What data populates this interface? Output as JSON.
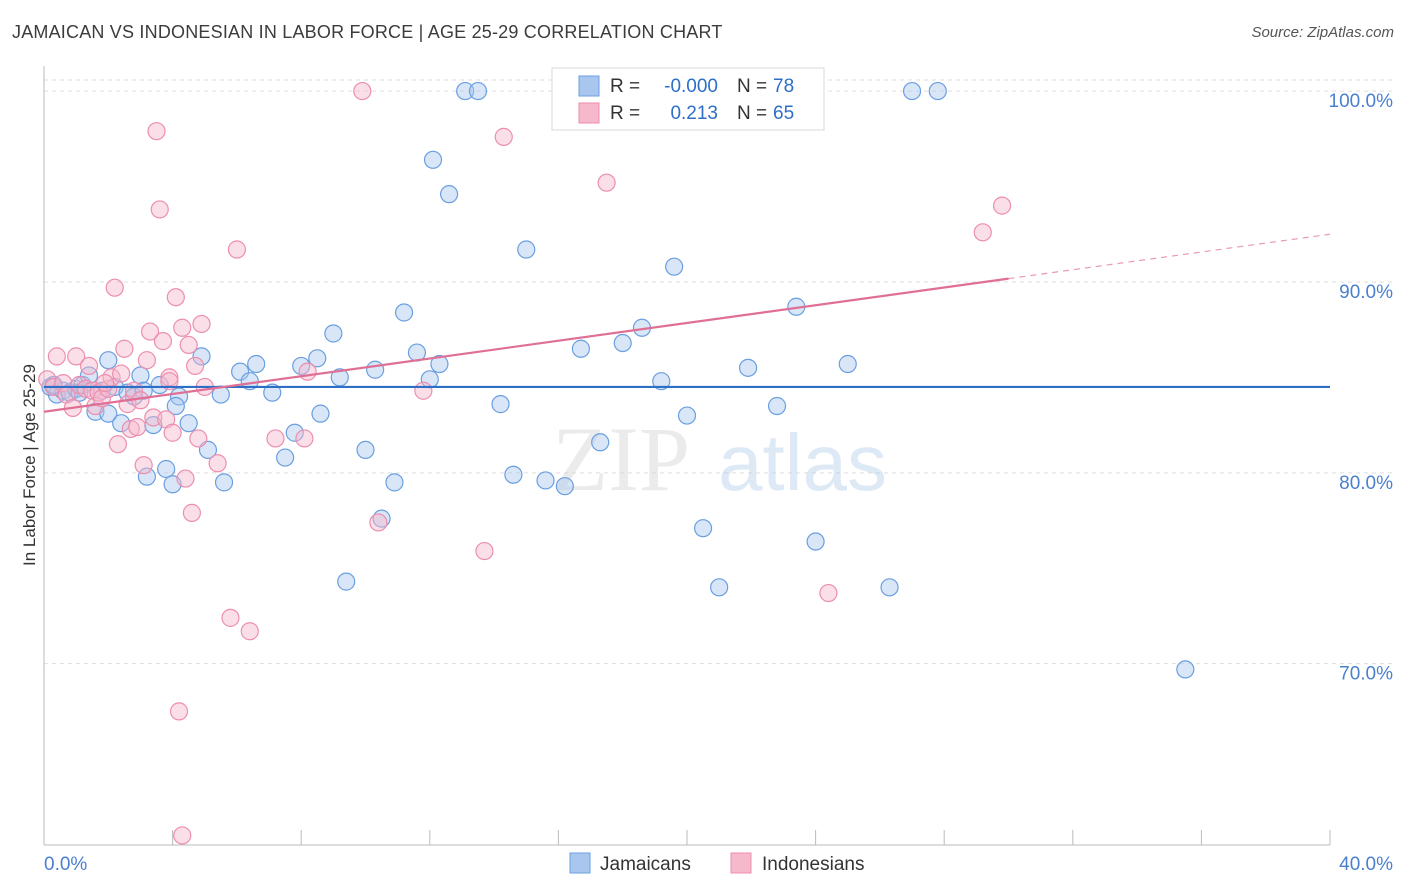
{
  "title": "JAMAICAN VS INDONESIAN IN LABOR FORCE | AGE 25-29 CORRELATION CHART",
  "source": "Source: ZipAtlas.com",
  "watermark": {
    "part1": "ZIP",
    "part2": "atlas"
  },
  "colors": {
    "blue_fill": "#a9c7ee",
    "blue_stroke": "#6a9fe0",
    "blue_line": "#2d6fc7",
    "pink_fill": "#f6b8cb",
    "pink_stroke": "#ec8eaf",
    "pink_line": "#e06f96",
    "axis_text": "#4a80cf",
    "grid": "#dddddd"
  },
  "legend": {
    "rows": [
      {
        "r_label": "R =",
        "r_value": "-0.000",
        "n_label": "N =",
        "n_value": "78",
        "series": "blue"
      },
      {
        "r_label": "R =",
        "r_value": "0.213",
        "n_label": "N =",
        "n_value": "65",
        "series": "pink"
      }
    ]
  },
  "chart_data": {
    "type": "scatter",
    "title": "JAMAICAN VS INDONESIAN IN LABOR FORCE | AGE 25-29 CORRELATION CHART",
    "xlabel": "",
    "ylabel": "In Labor Force | Age 25-29",
    "xlim": [
      0,
      40
    ],
    "ylim": [
      60.5,
      101
    ],
    "x_tick_labels": [
      "0.0%",
      "40.0%"
    ],
    "y_ticks": [
      70,
      80,
      90,
      100
    ],
    "y_tick_labels": [
      "70.0%",
      "80.0%",
      "90.0%",
      "100.0%"
    ],
    "grid": true,
    "legend_position": "bottom",
    "series": [
      {
        "name": "Jamaicans",
        "color": "blue",
        "trend": {
          "x": [
            0,
            40
          ],
          "y": [
            84.5,
            84.5
          ],
          "dashed_from": null
        },
        "points": [
          [
            0.2,
            84.5
          ],
          [
            0.4,
            84.1
          ],
          [
            0.6,
            84.3
          ],
          [
            0.8,
            84.2
          ],
          [
            1.0,
            84.4
          ],
          [
            1.2,
            84.6
          ],
          [
            1.4,
            85.1
          ],
          [
            1.6,
            83.2
          ],
          [
            1.8,
            84.3
          ],
          [
            2.0,
            85.9
          ],
          [
            2.2,
            84.5
          ],
          [
            2.4,
            82.6
          ],
          [
            2.6,
            84.2
          ],
          [
            2.8,
            84.0
          ],
          [
            3.0,
            85.1
          ],
          [
            3.2,
            79.8
          ],
          [
            3.4,
            82.5
          ],
          [
            3.6,
            84.6
          ],
          [
            3.8,
            80.2
          ],
          [
            4.0,
            79.4
          ],
          [
            4.2,
            84.0
          ],
          [
            4.5,
            82.6
          ],
          [
            4.9,
            86.1
          ],
          [
            5.1,
            81.2
          ],
          [
            5.6,
            79.5
          ],
          [
            6.1,
            85.3
          ],
          [
            6.6,
            85.7
          ],
          [
            7.1,
            84.2
          ],
          [
            7.5,
            80.8
          ],
          [
            8.0,
            85.6
          ],
          [
            8.6,
            83.1
          ],
          [
            9.0,
            87.3
          ],
          [
            9.4,
            74.3
          ],
          [
            10.0,
            81.2
          ],
          [
            10.5,
            77.6
          ],
          [
            10.9,
            79.5
          ],
          [
            11.2,
            88.4
          ],
          [
            11.6,
            86.3
          ],
          [
            12.1,
            96.4
          ],
          [
            12.3,
            85.7
          ],
          [
            12.6,
            94.6
          ],
          [
            13.1,
            100.0
          ],
          [
            13.5,
            100.0
          ],
          [
            14.2,
            83.6
          ],
          [
            14.6,
            79.9
          ],
          [
            15.0,
            91.7
          ],
          [
            15.6,
            79.6
          ],
          [
            16.2,
            79.3
          ],
          [
            16.7,
            86.5
          ],
          [
            17.3,
            81.6
          ],
          [
            18.0,
            86.8
          ],
          [
            18.6,
            87.6
          ],
          [
            19.2,
            84.8
          ],
          [
            19.6,
            90.8
          ],
          [
            20.0,
            83.0
          ],
          [
            20.5,
            77.1
          ],
          [
            21.0,
            74.0
          ],
          [
            21.9,
            85.5
          ],
          [
            22.8,
            83.5
          ],
          [
            23.4,
            88.7
          ],
          [
            24.0,
            76.4
          ],
          [
            25.0,
            85.7
          ],
          [
            26.3,
            74.0
          ],
          [
            27.0,
            100.0
          ],
          [
            27.8,
            100.0
          ],
          [
            35.5,
            69.7
          ],
          [
            1.1,
            84.2
          ],
          [
            2.0,
            83.1
          ],
          [
            3.1,
            84.3
          ],
          [
            5.5,
            84.1
          ],
          [
            0.3,
            84.6
          ],
          [
            8.5,
            86.0
          ],
          [
            9.2,
            85.0
          ],
          [
            4.1,
            83.5
          ],
          [
            6.4,
            84.8
          ],
          [
            10.3,
            85.4
          ],
          [
            7.8,
            82.1
          ],
          [
            12.0,
            84.9
          ]
        ]
      },
      {
        "name": "Indonesians",
        "color": "pink",
        "trend": {
          "x": [
            0,
            40
          ],
          "y": [
            83.2,
            92.5
          ],
          "dashed_from": 30
        },
        "points": [
          [
            0.1,
            84.9
          ],
          [
            0.3,
            84.5
          ],
          [
            0.4,
            86.1
          ],
          [
            0.6,
            84.7
          ],
          [
            0.7,
            84.1
          ],
          [
            0.9,
            83.4
          ],
          [
            1.0,
            86.1
          ],
          [
            1.1,
            84.6
          ],
          [
            1.3,
            84.4
          ],
          [
            1.4,
            85.6
          ],
          [
            1.5,
            84.3
          ],
          [
            1.6,
            83.5
          ],
          [
            1.7,
            84.2
          ],
          [
            1.8,
            83.9
          ],
          [
            2.0,
            84.4
          ],
          [
            2.1,
            85.0
          ],
          [
            2.2,
            89.7
          ],
          [
            2.3,
            81.5
          ],
          [
            2.4,
            85.2
          ],
          [
            2.5,
            86.5
          ],
          [
            2.6,
            83.6
          ],
          [
            2.7,
            82.3
          ],
          [
            2.8,
            84.3
          ],
          [
            2.9,
            82.4
          ],
          [
            3.0,
            83.8
          ],
          [
            3.1,
            80.4
          ],
          [
            3.2,
            85.9
          ],
          [
            3.3,
            87.4
          ],
          [
            3.4,
            82.9
          ],
          [
            3.5,
            97.9
          ],
          [
            3.6,
            93.8
          ],
          [
            3.7,
            86.9
          ],
          [
            3.8,
            82.8
          ],
          [
            3.9,
            85.0
          ],
          [
            4.0,
            82.1
          ],
          [
            4.1,
            89.2
          ],
          [
            4.2,
            67.5
          ],
          [
            4.3,
            87.6
          ],
          [
            4.4,
            79.7
          ],
          [
            4.5,
            86.7
          ],
          [
            4.6,
            77.9
          ],
          [
            4.7,
            85.6
          ],
          [
            4.8,
            81.8
          ],
          [
            4.9,
            87.8
          ],
          [
            5.0,
            84.5
          ],
          [
            5.4,
            80.5
          ],
          [
            5.8,
            72.4
          ],
          [
            6.0,
            91.7
          ],
          [
            6.4,
            71.7
          ],
          [
            7.2,
            81.8
          ],
          [
            9.9,
            100.0
          ],
          [
            10.4,
            77.4
          ],
          [
            11.8,
            84.3
          ],
          [
            13.7,
            75.9
          ],
          [
            14.3,
            97.6
          ],
          [
            17.5,
            95.2
          ],
          [
            18.2,
            100.0
          ],
          [
            24.4,
            73.7
          ],
          [
            29.2,
            92.6
          ],
          [
            29.8,
            94.0
          ],
          [
            4.3,
            61.0
          ],
          [
            8.2,
            85.3
          ],
          [
            1.9,
            84.7
          ],
          [
            3.9,
            84.8
          ],
          [
            8.1,
            81.8
          ]
        ]
      }
    ]
  }
}
